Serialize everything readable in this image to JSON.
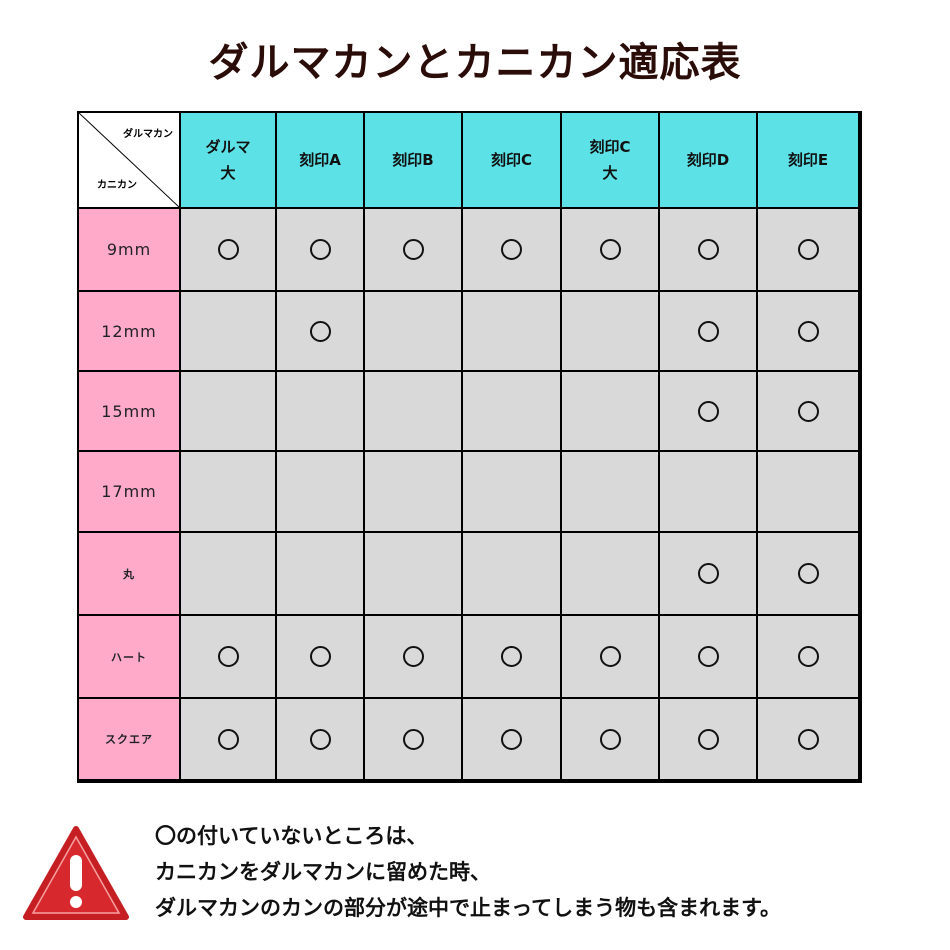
{
  "title": "ダルマカンとカニカン適応表",
  "corner": {
    "top_label": "ダルマカン",
    "bottom_label": "カニカン"
  },
  "columns": [
    "ダルマ\n大",
    "刻印A",
    "刻印B",
    "刻印C",
    "刻印C\n大",
    "刻印D",
    "刻印E"
  ],
  "rows": [
    {
      "label": "9mm",
      "marks": [
        true,
        true,
        true,
        true,
        true,
        true,
        true
      ]
    },
    {
      "label": "12mm",
      "marks": [
        false,
        true,
        false,
        false,
        false,
        true,
        true
      ]
    },
    {
      "label": "15mm",
      "marks": [
        false,
        false,
        false,
        false,
        false,
        true,
        true
      ]
    },
    {
      "label": "17mm",
      "marks": [
        false,
        false,
        false,
        false,
        false,
        false,
        false
      ]
    },
    {
      "label": "丸",
      "marks": [
        false,
        false,
        false,
        false,
        false,
        true,
        true
      ]
    },
    {
      "label": "ハート",
      "marks": [
        true,
        true,
        true,
        true,
        true,
        true,
        true
      ]
    },
    {
      "label": "スクエア",
      "marks": [
        true,
        true,
        true,
        true,
        true,
        true,
        true
      ]
    }
  ],
  "note": [
    "〇の付いていないところは、",
    "カニカンをダルマカンに留めた時、",
    "ダルマカンのカンの部分が途中で止まってしまう物も含まれます。"
  ],
  "colors": {
    "header": "#5ce1e6",
    "row_header": "#ffaac8",
    "cell": "#d9d9d9",
    "warning": "#d7282d"
  },
  "icons": {
    "warning": "warning-triangle-icon",
    "mark": "circle-mark"
  }
}
